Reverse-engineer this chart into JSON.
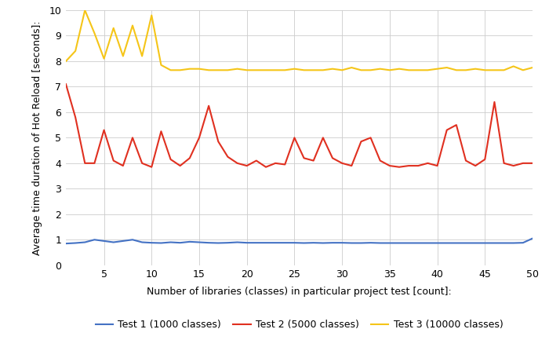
{
  "title": "",
  "xlabel": "Number of libraries (classes) in particular project test [count]:",
  "ylabel": "Average time duration of Hot Reload [seconds]:",
  "xlim": [
    1,
    50
  ],
  "ylim": [
    0,
    10
  ],
  "xticks": [
    5,
    10,
    15,
    20,
    25,
    30,
    35,
    40,
    45,
    50
  ],
  "yticks": [
    0,
    1,
    2,
    3,
    4,
    5,
    6,
    7,
    8,
    9,
    10
  ],
  "test1_color": "#4472C4",
  "test2_color": "#E03020",
  "test3_color": "#F5C518",
  "legend_labels": [
    "Test 1 (1000 classes)",
    "Test 2 (5000 classes)",
    "Test 3 (10000 classes)"
  ],
  "test1_x": [
    1,
    2,
    3,
    4,
    5,
    6,
    7,
    8,
    9,
    10,
    11,
    12,
    13,
    14,
    15,
    16,
    17,
    18,
    19,
    20,
    21,
    22,
    23,
    24,
    25,
    26,
    27,
    28,
    29,
    30,
    31,
    32,
    33,
    34,
    35,
    36,
    37,
    38,
    39,
    40,
    41,
    42,
    43,
    44,
    45,
    46,
    47,
    48,
    49,
    50
  ],
  "test1_y": [
    0.85,
    0.87,
    0.9,
    1.0,
    0.95,
    0.9,
    0.95,
    1.0,
    0.9,
    0.88,
    0.87,
    0.9,
    0.88,
    0.92,
    0.9,
    0.88,
    0.87,
    0.88,
    0.9,
    0.88,
    0.88,
    0.88,
    0.88,
    0.88,
    0.88,
    0.87,
    0.88,
    0.87,
    0.88,
    0.88,
    0.87,
    0.87,
    0.88,
    0.87,
    0.87,
    0.87,
    0.87,
    0.87,
    0.87,
    0.87,
    0.87,
    0.87,
    0.87,
    0.87,
    0.87,
    0.87,
    0.87,
    0.87,
    0.88,
    1.05
  ],
  "test2_x": [
    1,
    2,
    3,
    4,
    5,
    6,
    7,
    8,
    9,
    10,
    11,
    12,
    13,
    14,
    15,
    16,
    17,
    18,
    19,
    20,
    21,
    22,
    23,
    24,
    25,
    26,
    27,
    28,
    29,
    30,
    31,
    32,
    33,
    34,
    35,
    36,
    37,
    38,
    39,
    40,
    41,
    42,
    43,
    44,
    45,
    46,
    47,
    48,
    49,
    50
  ],
  "test2_y": [
    7.1,
    5.8,
    4.0,
    4.0,
    5.3,
    4.1,
    3.9,
    5.0,
    4.0,
    3.85,
    5.25,
    4.15,
    3.9,
    4.2,
    5.0,
    6.25,
    4.85,
    4.25,
    4.0,
    3.9,
    4.1,
    3.85,
    4.0,
    3.95,
    5.0,
    4.2,
    4.1,
    5.0,
    4.2,
    4.0,
    3.9,
    4.85,
    5.0,
    4.1,
    3.9,
    3.85,
    3.9,
    3.9,
    4.0,
    3.9,
    5.3,
    5.5,
    4.1,
    3.9,
    4.15,
    6.4,
    4.0,
    3.9,
    4.0,
    4.0
  ],
  "test3_x": [
    1,
    2,
    3,
    4,
    5,
    6,
    7,
    8,
    9,
    10,
    11,
    12,
    13,
    14,
    15,
    16,
    17,
    18,
    19,
    20,
    21,
    22,
    23,
    24,
    25,
    26,
    27,
    28,
    29,
    30,
    31,
    32,
    33,
    34,
    35,
    36,
    37,
    38,
    39,
    40,
    41,
    42,
    43,
    44,
    45,
    46,
    47,
    48,
    49,
    50
  ],
  "test3_y": [
    8.0,
    8.4,
    10.0,
    9.1,
    8.1,
    9.3,
    8.2,
    9.4,
    8.2,
    9.8,
    7.85,
    7.65,
    7.65,
    7.7,
    7.7,
    7.65,
    7.65,
    7.65,
    7.7,
    7.65,
    7.65,
    7.65,
    7.65,
    7.65,
    7.7,
    7.65,
    7.65,
    7.65,
    7.7,
    7.65,
    7.75,
    7.65,
    7.65,
    7.7,
    7.65,
    7.7,
    7.65,
    7.65,
    7.65,
    7.7,
    7.75,
    7.65,
    7.65,
    7.7,
    7.65,
    7.65,
    7.65,
    7.8,
    7.65,
    7.75
  ],
  "bg_color": "#ffffff",
  "grid_color": "#cccccc",
  "line_width": 1.5,
  "tick_fontsize": 9,
  "label_fontsize": 9
}
